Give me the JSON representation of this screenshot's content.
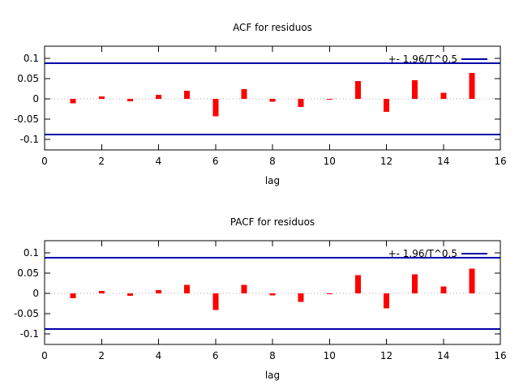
{
  "window": {
    "background": "#ffffff"
  },
  "chart_data": [
    {
      "type": "bar",
      "title": "ACF for residuos",
      "xlabel": "lag",
      "legend": "+- 1.96/T^0.5",
      "legend_position": "top-right-inside",
      "grid": false,
      "bar_color": "#ff0000",
      "band_color": "#0000aa",
      "zero_line_color": "#aaaaaa",
      "axis_color": "#000000",
      "confidence_band": 0.088,
      "xlim": [
        0,
        16
      ],
      "ylim": [
        -0.127,
        0.127
      ],
      "x_ticks": [
        0,
        2,
        4,
        6,
        8,
        10,
        12,
        14,
        16
      ],
      "y_ticks": [
        0.1,
        0.05,
        0,
        -0.05,
        -0.1
      ],
      "y_tick_labels": [
        "0.1",
        "0.05",
        "0",
        "-0.05",
        "-0.1"
      ],
      "x": [
        1,
        2,
        3,
        4,
        5,
        6,
        7,
        8,
        9,
        10,
        11,
        12,
        13,
        14,
        15
      ],
      "values": [
        -0.011,
        0.006,
        -0.006,
        0.01,
        0.02,
        -0.043,
        0.024,
        -0.007,
        -0.02,
        -0.001,
        0.044,
        -0.032,
        0.046,
        0.015,
        0.064
      ]
    },
    {
      "type": "bar",
      "title": "PACF for residuos",
      "xlabel": "lag",
      "legend": "+- 1.96/T^0.5",
      "legend_position": "top-right-inside",
      "grid": false,
      "bar_color": "#ff0000",
      "band_color": "#0000aa",
      "zero_line_color": "#aaaaaa",
      "axis_color": "#000000",
      "confidence_band": 0.088,
      "xlim": [
        0,
        16
      ],
      "ylim": [
        -0.127,
        0.127
      ],
      "x_ticks": [
        0,
        2,
        4,
        6,
        8,
        10,
        12,
        14,
        16
      ],
      "y_ticks": [
        0.1,
        0.05,
        0,
        -0.05,
        -0.1
      ],
      "y_tick_labels": [
        "0.1",
        "0.05",
        "0",
        "-0.05",
        "-0.1"
      ],
      "x": [
        1,
        2,
        3,
        4,
        5,
        6,
        7,
        8,
        9,
        10,
        11,
        12,
        13,
        14,
        15
      ],
      "values": [
        -0.012,
        0.006,
        -0.006,
        0.008,
        0.021,
        -0.041,
        0.021,
        -0.005,
        -0.021,
        -0.002,
        0.045,
        -0.037,
        0.047,
        0.017,
        0.061
      ]
    }
  ]
}
